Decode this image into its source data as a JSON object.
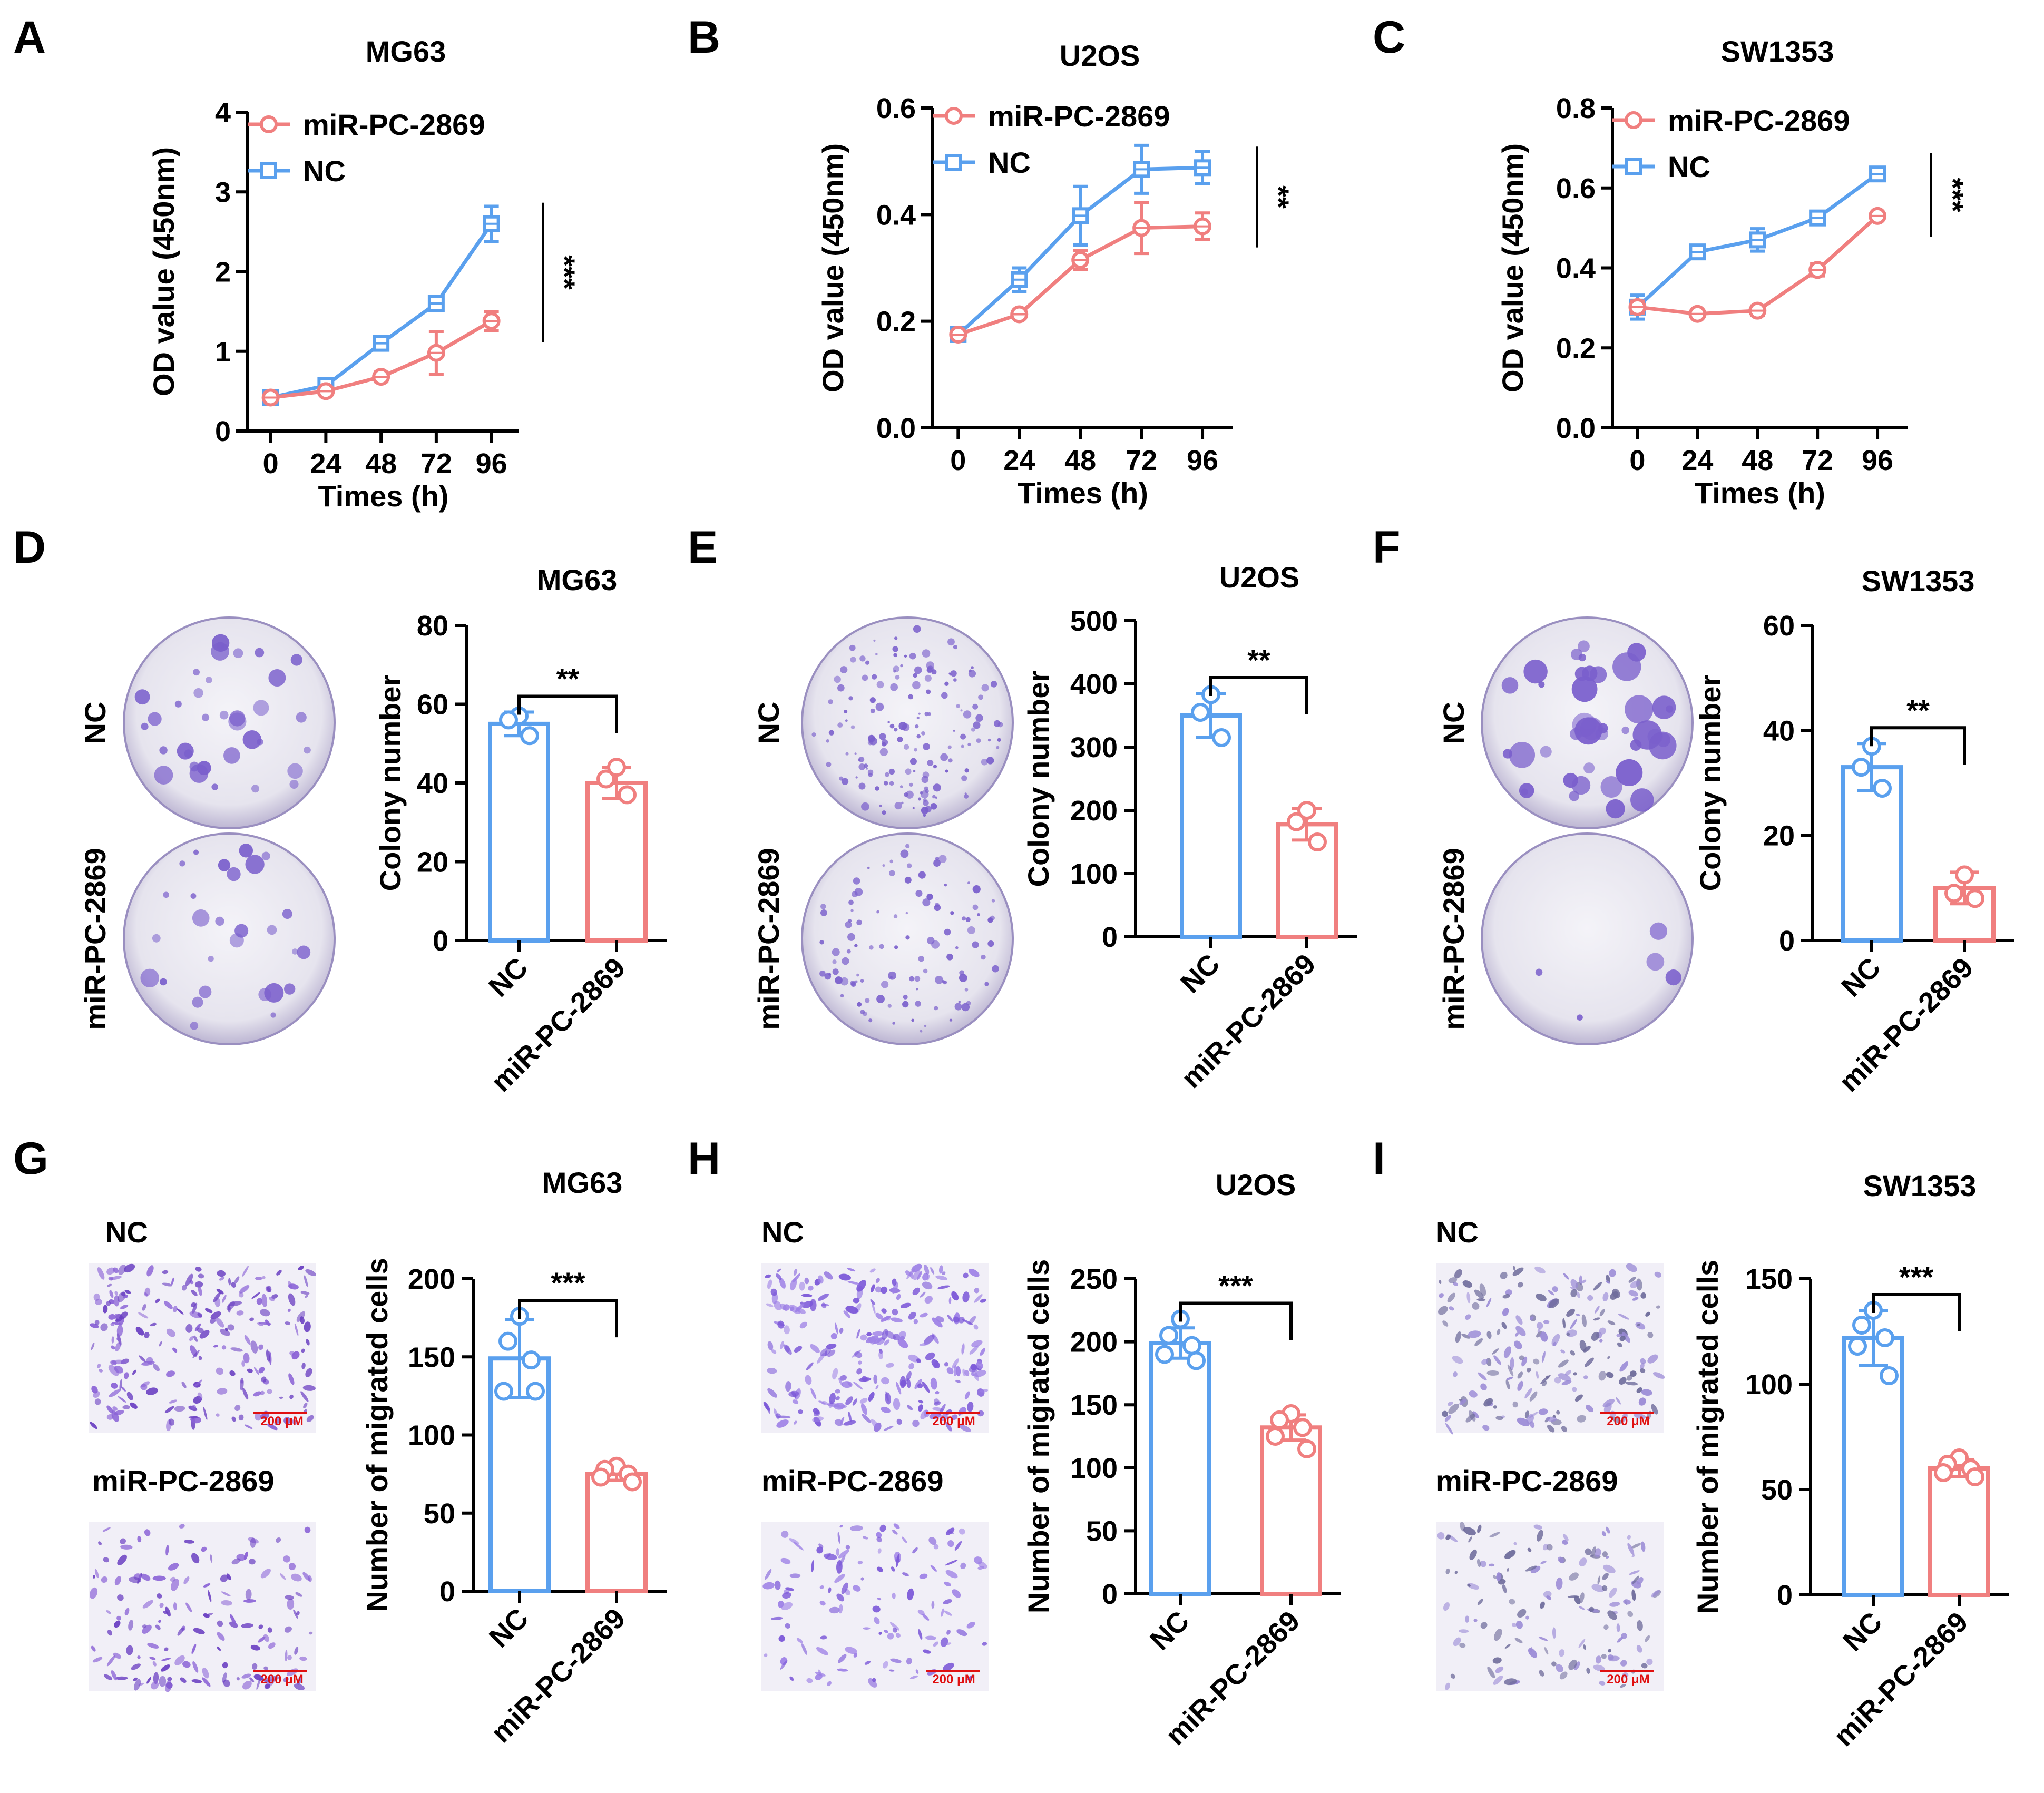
{
  "colors": {
    "sirna": "#f07f7f",
    "nc": "#5aa0ee",
    "axis": "#000000",
    "plate": "#eceaf0",
    "stain": "#7a5fcc",
    "scale_bar": "#e01010"
  },
  "panels": {
    "A": "A",
    "B": "B",
    "C": "C",
    "D": "D",
    "E": "E",
    "F": "F",
    "G": "G",
    "H": "H",
    "I": "I"
  },
  "chart_data": [
    {
      "id": "A",
      "type": "line",
      "title": "MG63",
      "xlabel": "Times (h)",
      "ylabel": "OD value (450nm)",
      "x": [
        0,
        24,
        48,
        72,
        96
      ],
      "xtick_labels": [
        "0",
        "24",
        "48",
        "72",
        "96"
      ],
      "ylim": [
        0,
        4
      ],
      "yticks": [
        0,
        1,
        2,
        3,
        4
      ],
      "ytick_labels": [
        "0",
        "1",
        "2",
        "3",
        "4"
      ],
      "legend": [
        "miR-PC-2869",
        "NC"
      ],
      "series": [
        {
          "name": "miR-PC-2869",
          "color_key": "sirna",
          "values": [
            0.42,
            0.5,
            0.68,
            0.98,
            1.38
          ],
          "errors": [
            0.04,
            0.04,
            0.06,
            0.27,
            0.12
          ]
        },
        {
          "name": "NC",
          "color_key": "nc",
          "values": [
            0.42,
            0.57,
            1.1,
            1.6,
            2.6
          ],
          "errors": [
            0.04,
            0.04,
            0.08,
            0.05,
            0.22
          ]
        }
      ],
      "significance": "***"
    },
    {
      "id": "B",
      "type": "line",
      "title": "U2OS",
      "xlabel": "Times (h)",
      "ylabel": "OD value (450nm)",
      "x": [
        0,
        24,
        48,
        72,
        96
      ],
      "xtick_labels": [
        "0",
        "24",
        "48",
        "72",
        "96"
      ],
      "ylim": [
        0,
        0.6
      ],
      "yticks": [
        0,
        0.2,
        0.4,
        0.6
      ],
      "ytick_labels": [
        "0.0",
        "0.2",
        "0.4",
        "0.6"
      ],
      "legend": [
        "miR-PC-2869",
        "NC"
      ],
      "series": [
        {
          "name": "miR-PC-2869",
          "color_key": "sirna",
          "values": [
            0.175,
            0.213,
            0.315,
            0.375,
            0.378
          ],
          "errors": [
            0.008,
            0.008,
            0.018,
            0.048,
            0.025
          ]
        },
        {
          "name": "NC",
          "color_key": "nc",
          "values": [
            0.175,
            0.278,
            0.398,
            0.485,
            0.488
          ],
          "errors": [
            0.008,
            0.022,
            0.055,
            0.045,
            0.03
          ]
        }
      ],
      "significance": "**"
    },
    {
      "id": "C",
      "type": "line",
      "title": "SW1353",
      "xlabel": "Times (h)",
      "ylabel": "OD value (450nm)",
      "x": [
        0,
        24,
        48,
        72,
        96
      ],
      "xtick_labels": [
        "0",
        "24",
        "48",
        "72",
        "96"
      ],
      "ylim": [
        0,
        0.8
      ],
      "yticks": [
        0,
        0.2,
        0.4,
        0.6,
        0.8
      ],
      "ytick_labels": [
        "0.0",
        "0.2",
        "0.4",
        "0.6",
        "0.8"
      ],
      "legend": [
        "miR-PC-2869",
        "NC"
      ],
      "series": [
        {
          "name": "miR-PC-2869",
          "color_key": "sirna",
          "values": [
            0.302,
            0.285,
            0.293,
            0.395,
            0.53
          ],
          "errors": [
            0.015,
            0.008,
            0.012,
            0.015,
            0.008
          ]
        },
        {
          "name": "NC",
          "color_key": "nc",
          "values": [
            0.302,
            0.44,
            0.47,
            0.525,
            0.635
          ],
          "errors": [
            0.03,
            0.015,
            0.028,
            0.01,
            0.012
          ]
        }
      ],
      "significance": "***"
    },
    {
      "id": "D",
      "type": "bar",
      "title": "MG63",
      "ylabel": "Colony number",
      "categories": [
        "NC",
        "miR-PC-2869"
      ],
      "ylim": [
        0,
        80
      ],
      "yticks": [
        0,
        20,
        40,
        60,
        80
      ],
      "ytick_labels": [
        "0",
        "20",
        "40",
        "60",
        "80"
      ],
      "values": [
        55,
        40
      ],
      "errors": [
        3,
        4
      ],
      "points": [
        [
          57,
          56,
          52
        ],
        [
          44,
          41,
          37
        ]
      ],
      "significance": "**"
    },
    {
      "id": "E",
      "type": "bar",
      "title": "U2OS",
      "ylabel": "Colony number",
      "categories": [
        "NC",
        "miR-PC-2869"
      ],
      "ylim": [
        0,
        500
      ],
      "yticks": [
        0,
        100,
        200,
        300,
        400,
        500
      ],
      "ytick_labels": [
        "0",
        "100",
        "200",
        "300",
        "400",
        "500"
      ],
      "values": [
        350,
        178
      ],
      "errors": [
        35,
        25
      ],
      "points": [
        [
          383,
          355,
          315
        ],
        [
          200,
          182,
          150
        ]
      ],
      "significance": "**"
    },
    {
      "id": "F",
      "type": "bar",
      "title": "SW1353",
      "ylabel": "Colony number",
      "categories": [
        "NC",
        "miR-PC-2869"
      ],
      "ylim": [
        0,
        60
      ],
      "yticks": [
        0,
        20,
        40,
        60
      ],
      "ytick_labels": [
        "0",
        "20",
        "40",
        "60"
      ],
      "values": [
        33,
        10
      ],
      "errors": [
        4.5,
        3
      ],
      "points": [
        [
          37,
          33,
          29
        ],
        [
          12.5,
          9,
          8
        ]
      ],
      "significance": "**"
    },
    {
      "id": "G",
      "type": "bar",
      "title": "MG63",
      "ylabel": "Number of migrated cells",
      "categories": [
        "NC",
        "miR-PC-2869"
      ],
      "ylim": [
        0,
        200
      ],
      "yticks": [
        0,
        50,
        100,
        150,
        200
      ],
      "ytick_labels": [
        "0",
        "50",
        "100",
        "150",
        "200"
      ],
      "values": [
        149,
        75
      ],
      "errors": [
        25,
        4
      ],
      "points": [
        [
          176,
          160,
          148,
          128,
          128
        ],
        [
          80,
          78,
          75,
          73,
          70
        ]
      ],
      "significance": "***"
    },
    {
      "id": "H",
      "type": "bar",
      "title": "U2OS",
      "ylabel": "Number of migrated cells",
      "categories": [
        "NC",
        "miR-PC-2869"
      ],
      "ylim": [
        0,
        250
      ],
      "yticks": [
        0,
        50,
        100,
        150,
        200,
        250
      ],
      "ytick_labels": [
        "0",
        "50",
        "100",
        "150",
        "200",
        "250"
      ],
      "values": [
        199,
        132
      ],
      "errors": [
        12,
        10
      ],
      "points": [
        [
          218,
          205,
          197,
          190,
          185
        ],
        [
          143,
          138,
          132,
          125,
          115
        ]
      ],
      "significance": "***"
    },
    {
      "id": "I",
      "type": "bar",
      "title": "SW1353",
      "ylabel": "Number of migrated cells",
      "categories": [
        "NC",
        "miR-PC-2869"
      ],
      "ylim": [
        0,
        150
      ],
      "yticks": [
        0,
        50,
        100,
        150
      ],
      "ytick_labels": [
        "0",
        "50",
        "100",
        "150"
      ],
      "values": [
        122,
        60
      ],
      "errors": [
        13,
        4
      ],
      "points": [
        [
          135,
          128,
          122,
          118,
          104
        ],
        [
          65,
          62,
          60,
          58,
          56
        ]
      ],
      "significance": "***"
    }
  ],
  "images": {
    "D": {
      "top_label": "NC",
      "bottom_label": "miR-PC-2869"
    },
    "E": {
      "top_label": "NC",
      "bottom_label": "miR-PC-2869"
    },
    "F": {
      "top_label": "NC",
      "bottom_label": "miR-PC-2869"
    },
    "G": {
      "top_label": "NC",
      "bottom_label": "miR-PC-2869",
      "scale_bar": "200 μM"
    },
    "H": {
      "top_label": "NC",
      "bottom_label": "miR-PC-2869",
      "scale_bar": "200 μM"
    },
    "I": {
      "top_label": "NC",
      "bottom_label": "miR-PC-2869",
      "scale_bar": "200 μM"
    }
  }
}
